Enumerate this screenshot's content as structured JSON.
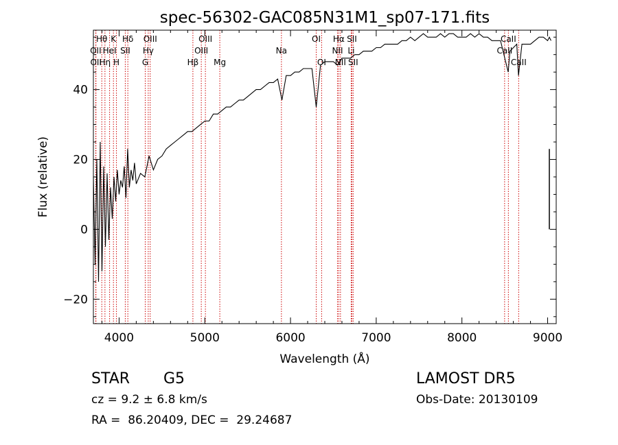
{
  "chart_data": {
    "type": "line",
    "title": "spec-56302-GAC085N31M1_sp07-171.fits",
    "xlabel": "Wavelength (Å)",
    "ylabel": "Flux (relative)",
    "xlim": [
      3700,
      9100
    ],
    "ylim": [
      -27,
      57
    ],
    "xticks": [
      4000,
      5000,
      6000,
      7000,
      8000,
      9000
    ],
    "yticks": [
      -20,
      0,
      20,
      40
    ],
    "grid": false,
    "line_colors": {
      "spectrum": "#000000",
      "marker": "#cc0000"
    },
    "series": [
      {
        "x": [
          3700,
          3720,
          3740,
          3760,
          3780,
          3800,
          3820,
          3840,
          3860,
          3880,
          3900,
          3920,
          3940,
          3960,
          3980,
          4000,
          4020,
          4040,
          4060,
          4080,
          4100,
          4120,
          4140,
          4160,
          4180,
          4200,
          4250,
          4300,
          4350,
          4400,
          4450,
          4500,
          4550,
          4600,
          4650,
          4700,
          4750,
          4800,
          4850,
          4900,
          4950,
          5000,
          5050,
          5100,
          5150,
          5200,
          5250,
          5300,
          5350,
          5400,
          5450,
          5500,
          5550,
          5600,
          5650,
          5700,
          5750,
          5800,
          5850,
          5900,
          5950,
          6000,
          6050,
          6100,
          6150,
          6200,
          6250,
          6300,
          6350,
          6400,
          6450,
          6500,
          6550,
          6600,
          6650,
          6700,
          6750,
          6800,
          6850,
          6900,
          6950,
          7000,
          7050,
          7100,
          7150,
          7200,
          7250,
          7300,
          7350,
          7400,
          7450,
          7500,
          7550,
          7600,
          7650,
          7700,
          7750,
          7800,
          7850,
          7900,
          7950,
          8000,
          8050,
          8100,
          8150,
          8200,
          8250,
          8300,
          8350,
          8400,
          8450,
          8500,
          8540,
          8560,
          8600,
          8640,
          8660,
          8700,
          8750,
          8800,
          8850,
          8900,
          8950,
          9000,
          9020,
          9040
        ],
        "y": [
          15,
          -10,
          20,
          -15,
          25,
          -12,
          18,
          -5,
          16,
          -3,
          12,
          3,
          15,
          8,
          17,
          10,
          14,
          12,
          18,
          9,
          23,
          12,
          17,
          14,
          19,
          13,
          16,
          15,
          21,
          17,
          20,
          21,
          23,
          24,
          25,
          26,
          27,
          28,
          28,
          29,
          30,
          31,
          31,
          33,
          33,
          34,
          35,
          35,
          36,
          37,
          37,
          38,
          39,
          40,
          40,
          41,
          42,
          42,
          43,
          37,
          44,
          44,
          45,
          45,
          46,
          46,
          46,
          35,
          47,
          48,
          48,
          48,
          47,
          49,
          49,
          49,
          50,
          50,
          51,
          51,
          51,
          52,
          52,
          53,
          53,
          53,
          53,
          54,
          54,
          55,
          54,
          55,
          56,
          55,
          55,
          55,
          56,
          55,
          56,
          56,
          55,
          55,
          55,
          56,
          55,
          56,
          55,
          55,
          54,
          54,
          54,
          49,
          45,
          51,
          52,
          53,
          44,
          53,
          53,
          53,
          54,
          55,
          55,
          54,
          55,
          54
        ],
        "spike": {
          "x": 9020,
          "y_low": 0,
          "y_high": 23
        }
      }
    ],
    "lines": [
      {
        "name": "Hθ",
        "wave": 3798,
        "row": 1
      },
      {
        "name": "OII",
        "wave": 3727,
        "row": 2
      },
      {
        "name": "OII",
        "wave": 3730,
        "row": 3
      },
      {
        "name": "K",
        "wave": 3934,
        "row": 1
      },
      {
        "name": "HeI",
        "wave": 3889,
        "row": 2
      },
      {
        "name": "Hη",
        "wave": 3835,
        "row": 3
      },
      {
        "name": "Hδ",
        "wave": 4102,
        "row": 1
      },
      {
        "name": "SII",
        "wave": 4072,
        "row": 2
      },
      {
        "name": "H",
        "wave": 3969,
        "row": 3
      },
      {
        "name": "OIII",
        "wave": 4363,
        "row": 1
      },
      {
        "name": "Hγ",
        "wave": 4340,
        "row": 2
      },
      {
        "name": "G",
        "wave": 4305,
        "row": 3
      },
      {
        "name": "OIII",
        "wave": 5007,
        "row": 1
      },
      {
        "name": "OIII",
        "wave": 4959,
        "row": 2
      },
      {
        "name": "Hβ",
        "wave": 4861,
        "row": 3
      },
      {
        "name": "Mg",
        "wave": 5175,
        "row": 3
      },
      {
        "name": "Na",
        "wave": 5894,
        "row": 2
      },
      {
        "name": "OI",
        "wave": 6300,
        "row": 1
      },
      {
        "name": "OI",
        "wave": 6363,
        "row": 3
      },
      {
        "name": "Hα",
        "wave": 6563,
        "row": 1
      },
      {
        "name": "NII",
        "wave": 6548,
        "row": 2
      },
      {
        "name": "NII",
        "wave": 6583,
        "row": 3
      },
      {
        "name": "SII",
        "wave": 6716,
        "row": 1
      },
      {
        "name": "Li",
        "wave": 6708,
        "row": 2
      },
      {
        "name": "SII",
        "wave": 6731,
        "row": 3
      },
      {
        "name": "CaII",
        "wave": 8542,
        "row": 1
      },
      {
        "name": "CaII",
        "wave": 8498,
        "row": 2
      },
      {
        "name": "CaII",
        "wave": 8662,
        "row": 3
      }
    ]
  },
  "info": {
    "class": "STAR",
    "subclass": "G5",
    "survey": "LAMOST DR5",
    "cz": "cz = 9.2 ± 6.8 km/s",
    "obs_date": "Obs-Date: 20130109",
    "radec": "RA =  86.20409, DEC =  29.24687"
  }
}
